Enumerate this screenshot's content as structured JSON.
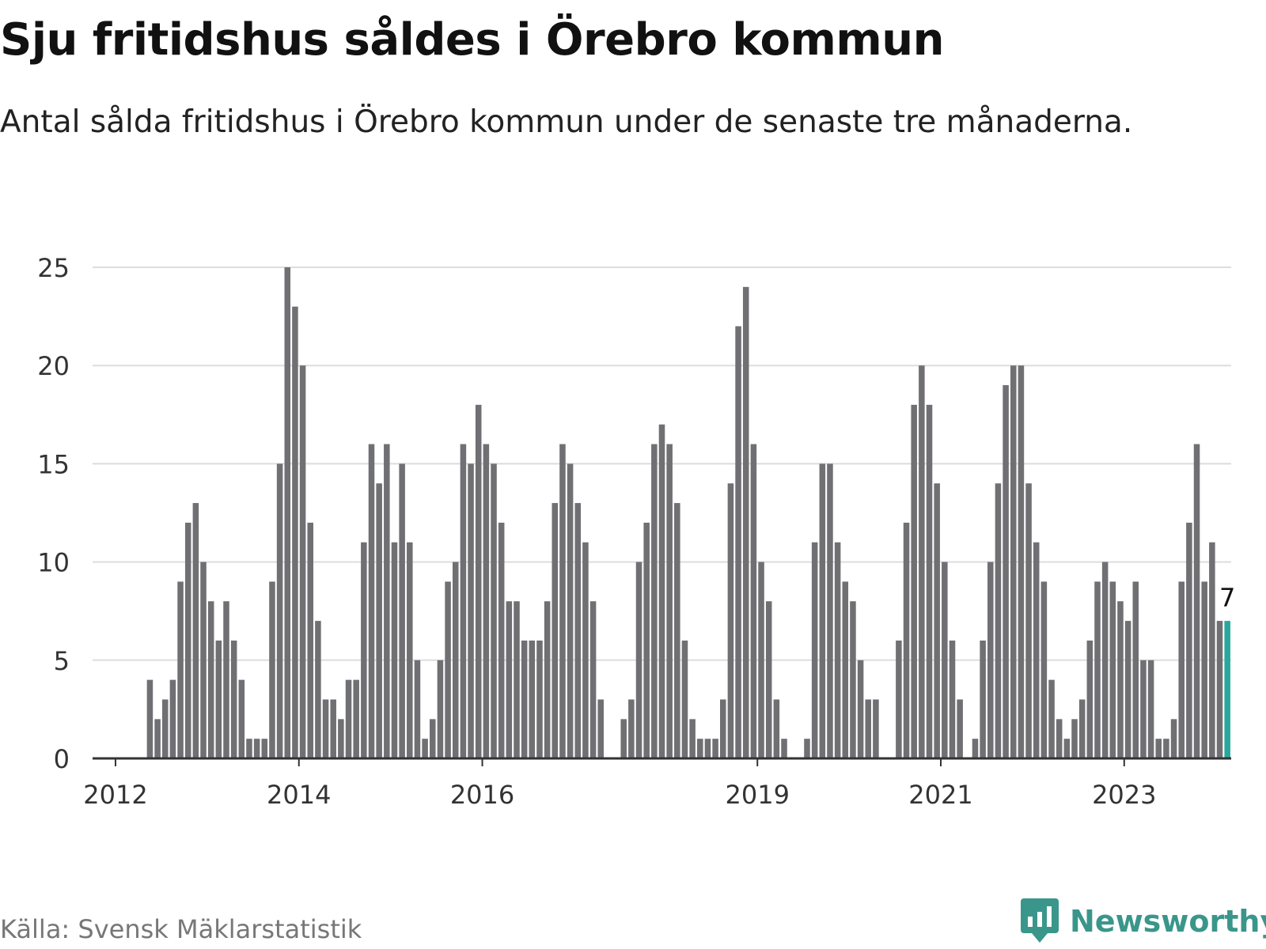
{
  "title": "Sju fritidshus såldes i Örebro kommun",
  "subtitle": "Antal sålda fritidshus i Örebro kommun under de senaste tre månaderna.",
  "source": "Källa: Svensk Mäklarstatistik",
  "brand": "Newsworthy",
  "colors": {
    "bar": "#707074",
    "highlight": "#2aa79b",
    "grid": "#dddddd",
    "axis": "#333333",
    "brand": "#3a968a"
  },
  "chart_data": {
    "type": "bar",
    "title": "Sju fritidshus såldes i Örebro kommun",
    "subtitle": "Antal sålda fritidshus i Örebro kommun under de senaste tre månaderna.",
    "x_start": "2011-10",
    "x_end": "2023-12",
    "x_ticks": [
      "2012",
      "2014",
      "2016",
      "2019",
      "2021",
      "2023"
    ],
    "y_ticks": [
      0,
      5,
      10,
      15,
      20,
      25
    ],
    "ylim": [
      0,
      25
    ],
    "grid": true,
    "highlight_label": "7",
    "values": [
      0,
      0,
      0,
      0,
      0,
      0,
      0,
      4,
      2,
      3,
      4,
      9,
      12,
      13,
      10,
      8,
      6,
      8,
      6,
      4,
      1,
      1,
      1,
      9,
      15,
      25,
      23,
      20,
      12,
      7,
      3,
      3,
      2,
      4,
      4,
      11,
      16,
      14,
      16,
      11,
      15,
      11,
      5,
      1,
      2,
      5,
      9,
      10,
      16,
      15,
      18,
      16,
      15,
      12,
      8,
      8,
      6,
      6,
      6,
      8,
      13,
      16,
      15,
      13,
      11,
      8,
      3,
      0,
      0,
      2,
      3,
      10,
      12,
      16,
      17,
      16,
      13,
      6,
      2,
      1,
      1,
      1,
      3,
      14,
      22,
      24,
      16,
      10,
      8,
      3,
      1,
      0,
      0,
      1,
      11,
      15,
      15,
      11,
      9,
      8,
      5,
      3,
      3,
      0,
      0,
      6,
      12,
      18,
      20,
      18,
      14,
      10,
      6,
      3,
      0,
      1,
      6,
      10,
      14,
      19,
      20,
      20,
      14,
      11,
      9,
      4,
      2,
      1,
      2,
      3,
      6,
      9,
      10,
      9,
      8,
      7,
      9,
      5,
      5,
      1,
      1,
      2,
      9,
      12,
      16,
      9,
      11,
      7,
      7
    ]
  }
}
